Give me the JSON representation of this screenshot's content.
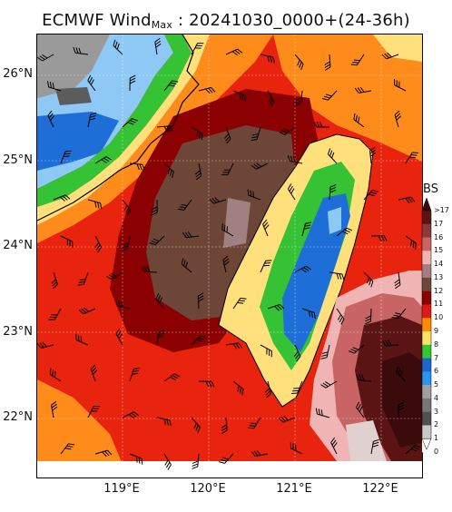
{
  "title": {
    "prefix": "ECMWF Wind",
    "subscript": "Max",
    "suffix": " : 20241030_0000+(24-36h)"
  },
  "axes": {
    "lat_labels": [
      "26°N",
      "25°N",
      "24°N",
      "23°N",
      "22°N"
    ],
    "lon_labels": [
      "119°E",
      "120°E",
      "121°E",
      "122°E"
    ]
  },
  "colorbar": {
    "title": "BS",
    "labels": [
      ">17",
      "17",
      "16",
      "15",
      "14",
      "13",
      "12",
      "11",
      "10",
      "9",
      "8",
      "7",
      "6",
      "5",
      "4",
      "3",
      "2",
      "1",
      "0"
    ],
    "colors": [
      "#3b0b0b",
      "#5a1414",
      "#8b3a3a",
      "#c86464",
      "#f0b4b4",
      "#a08080",
      "#6e4638",
      "#8b0000",
      "#e01a10",
      "#ff8c00",
      "#ffe066",
      "#31c831",
      "#1e64d2",
      "#2896f0",
      "#a0a0a0",
      "#787878",
      "#505050",
      "#c8c8c8",
      "#ffffff"
    ]
  },
  "map": {
    "region": "Taiwan Strait",
    "colors": {
      "sea_dark_red": "#b01010",
      "sea_red": "#e8240f",
      "orange": "#ff8c1a",
      "yellow": "#ffe07a",
      "green": "#35c335",
      "blue": "#1e6ed8",
      "light_blue": "#8ec8f5",
      "brown": "#6e4638",
      "gray": "#6a6a6a",
      "coast": "#000000"
    }
  }
}
